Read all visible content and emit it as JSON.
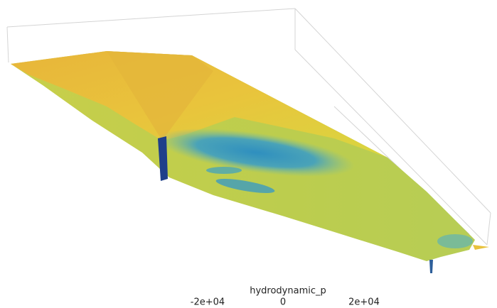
{
  "colorbar": {
    "title": "hydrodynamic_p",
    "tick_labels": [
      "-2e+04",
      "0",
      "2e+04"
    ]
  }
}
